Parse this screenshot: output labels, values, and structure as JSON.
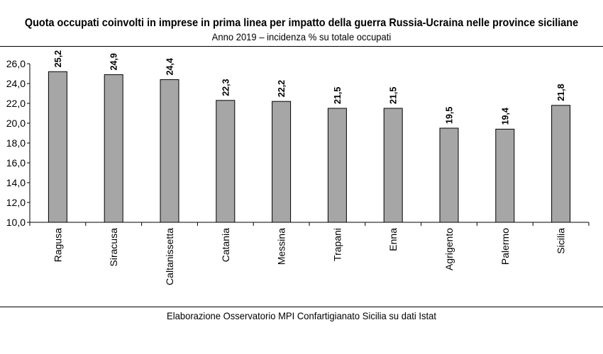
{
  "chart_data": {
    "type": "bar",
    "title": "Quota occupati coinvolti in imprese in prima linea per impatto della guerra Russia-Ucraina nelle province siciliane",
    "subtitle": "Anno 2019 – incidenza % su totale occupati",
    "source": "Elaborazione Osservatorio MPI Confartigianato Sicilia su dati Istat",
    "categories": [
      "Ragusa",
      "Siracusa",
      "Caltanissetta",
      "Catania",
      "Messina",
      "Trapani",
      "Enna",
      "Agrigento",
      "Palermo",
      "Sicilia"
    ],
    "values": [
      25.2,
      24.9,
      24.4,
      22.3,
      22.2,
      21.5,
      21.5,
      19.5,
      19.4,
      21.8
    ],
    "value_labels": [
      "25,2",
      "24,9",
      "24,4",
      "22,3",
      "22,2",
      "21,5",
      "21,5",
      "19,5",
      "19,4",
      "21,8"
    ],
    "yticks": [
      10,
      12,
      14,
      16,
      18,
      20,
      22,
      24,
      26
    ],
    "ytick_labels": [
      "10,0",
      "12,0",
      "14,0",
      "16,0",
      "18,0",
      "20,0",
      "22,0",
      "24,0",
      "26,0"
    ],
    "ylim": [
      10,
      26
    ],
    "xlabel": "",
    "ylabel": "",
    "grid": false,
    "legend": "none",
    "bar_color": "#a6a6a6",
    "bar_edge_color": "#000000"
  }
}
